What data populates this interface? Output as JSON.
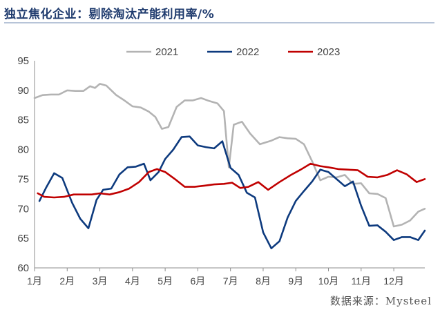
{
  "title": "独立焦化企业：剔除淘汰产能利用率/%",
  "source": "数据来源：Mysteel",
  "colors": {
    "2021": "#b3b3b3",
    "2022": "#0d3a7e",
    "2023": "#c00000"
  },
  "chart_data": {
    "type": "line",
    "title": "独立焦化企业：剔除淘汰产能利用率/%",
    "ylim": [
      60,
      95
    ],
    "yticks": [
      60,
      65,
      70,
      75,
      80,
      85,
      90,
      95
    ],
    "xlabel": "",
    "ylabel": "",
    "grid": false,
    "legend_position": "top",
    "x_tick_labels": [
      "1月",
      "2月",
      "3月",
      "4月",
      "5月",
      "6月",
      "7月",
      "8月",
      "9月",
      "10月",
      "11月",
      "12月"
    ],
    "x_range": [
      1,
      12.95
    ],
    "series": [
      {
        "name": "2021",
        "x": [
          1.0,
          1.25,
          1.5,
          1.75,
          2.0,
          2.25,
          2.5,
          2.7,
          2.85,
          3.0,
          3.2,
          3.5,
          3.75,
          4.0,
          4.25,
          4.5,
          4.7,
          4.9,
          5.1,
          5.35,
          5.6,
          5.85,
          6.1,
          6.35,
          6.6,
          6.8,
          6.95,
          7.1,
          7.35,
          7.6,
          7.9,
          8.25,
          8.5,
          8.75,
          9.0,
          9.25,
          9.5,
          9.75,
          10.0,
          10.25,
          10.5,
          10.75,
          11.0,
          11.25,
          11.5,
          11.75,
          12.0,
          12.25,
          12.5,
          12.75,
          12.95
        ],
        "y": [
          88.7,
          89.2,
          89.3,
          89.3,
          90.0,
          89.9,
          89.9,
          90.7,
          90.4,
          91.1,
          90.8,
          89.2,
          88.3,
          87.3,
          87.1,
          86.4,
          85.5,
          83.5,
          83.8,
          87.2,
          88.3,
          88.3,
          88.7,
          88.2,
          87.8,
          86.5,
          77.0,
          84.2,
          84.7,
          82.7,
          80.9,
          81.5,
          82.1,
          81.9,
          81.8,
          80.9,
          78.0,
          74.8,
          75.4,
          75.3,
          75.7,
          74.2,
          74.3,
          72.6,
          72.5,
          71.8,
          67.0,
          67.3,
          68.0,
          69.5,
          70.0
        ]
      },
      {
        "name": "2022",
        "x": [
          1.15,
          1.35,
          1.6,
          1.85,
          2.15,
          2.4,
          2.65,
          2.9,
          3.1,
          3.35,
          3.6,
          3.85,
          4.1,
          4.35,
          4.55,
          4.8,
          5.0,
          5.25,
          5.5,
          5.75,
          6.0,
          6.25,
          6.5,
          6.75,
          7.0,
          7.25,
          7.5,
          7.75,
          8.0,
          8.25,
          8.5,
          8.75,
          9.0,
          9.25,
          9.5,
          9.75,
          10.0,
          10.25,
          10.5,
          10.75,
          11.0,
          11.25,
          11.5,
          11.75,
          12.0,
          12.25,
          12.5,
          12.75,
          12.95
        ],
        "y": [
          71.3,
          73.5,
          76.0,
          75.2,
          71.0,
          68.3,
          66.7,
          71.5,
          73.2,
          73.4,
          75.8,
          77.0,
          77.1,
          77.6,
          74.8,
          76.2,
          78.4,
          80.0,
          82.1,
          82.2,
          80.7,
          80.4,
          80.2,
          81.4,
          76.9,
          75.7,
          72.7,
          71.9,
          66.0,
          63.3,
          64.5,
          68.5,
          71.3,
          73.0,
          74.6,
          76.6,
          76.2,
          75.0,
          73.8,
          74.6,
          70.5,
          67.1,
          67.2,
          66.1,
          64.7,
          65.2,
          65.2,
          64.7,
          66.3
        ]
      },
      {
        "name": "2023",
        "x": [
          1.1,
          1.3,
          1.6,
          1.9,
          2.2,
          2.5,
          2.75,
          3.0,
          3.3,
          3.6,
          3.9,
          4.2,
          4.5,
          4.75,
          5.0,
          5.3,
          5.6,
          5.9,
          6.2,
          6.5,
          6.8,
          7.05,
          7.3,
          7.55,
          7.85,
          8.15,
          8.5,
          8.85,
          9.15,
          9.45,
          9.75,
          10.0,
          10.3,
          10.6,
          10.9,
          11.2,
          11.5,
          11.8,
          12.1,
          12.4,
          12.7,
          12.95
        ],
        "y": [
          72.6,
          72.0,
          71.9,
          72.0,
          72.4,
          72.4,
          72.4,
          72.6,
          72.4,
          72.8,
          73.4,
          74.5,
          76.2,
          76.7,
          76.2,
          75.0,
          73.7,
          73.7,
          73.9,
          74.1,
          74.2,
          74.4,
          73.5,
          73.7,
          74.5,
          73.2,
          74.5,
          75.7,
          76.6,
          77.6,
          77.2,
          77.0,
          76.7,
          76.6,
          76.5,
          75.4,
          75.3,
          75.7,
          76.5,
          75.8,
          74.5,
          75.0
        ]
      }
    ]
  }
}
